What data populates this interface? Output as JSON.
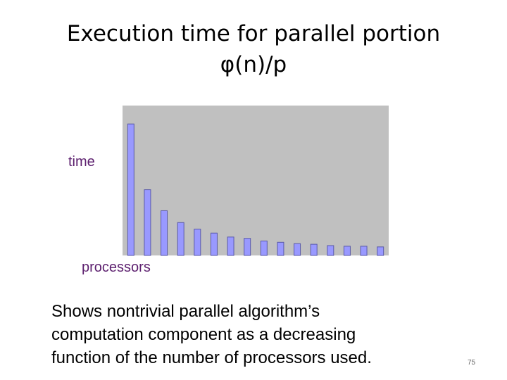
{
  "chart_data": {
    "type": "bar",
    "title": "Execution time for parallel portion",
    "subtitle": "φ(n)/p",
    "y_label": "time",
    "x_label": "processors",
    "categories": [
      null,
      null,
      null,
      null,
      null,
      null,
      null,
      null,
      null,
      null,
      null,
      null,
      null,
      null,
      null,
      null
    ],
    "values": [
      1,
      0.5,
      0.34,
      0.25,
      0.2,
      0.17,
      0.14,
      0.13,
      0.11,
      0.1,
      0.09,
      0.085,
      0.075,
      0.07,
      0.07,
      0.065
    ],
    "color": "#9999ff",
    "ylim": [
      0,
      1.14
    ]
  },
  "caption": [
    "Shows nontrivial parallel algorithm’s",
    "computation component as a decreasing",
    "function of the number of processors used."
  ],
  "page_number": "75"
}
